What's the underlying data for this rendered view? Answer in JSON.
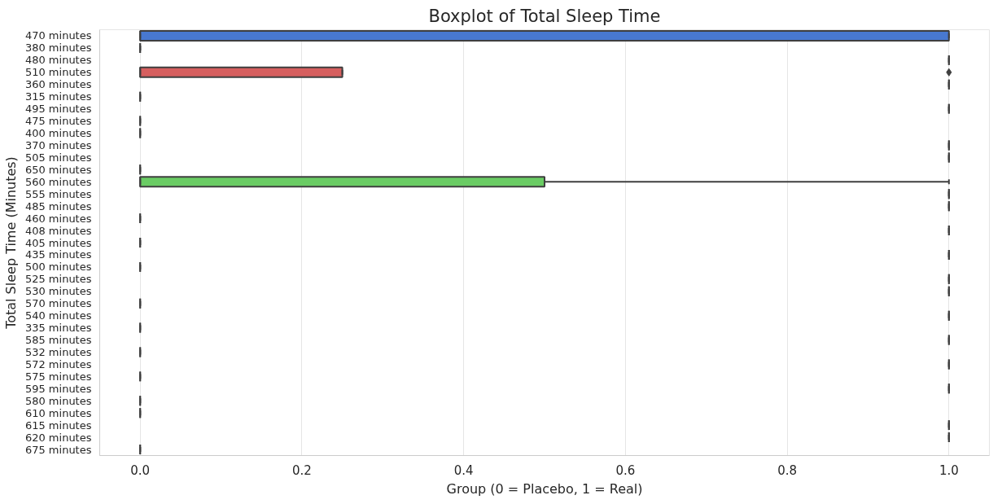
{
  "chart_data": {
    "type": "box",
    "orientation": "horizontal",
    "title": "Boxplot of Total Sleep Time",
    "xlabel": "Group (0 = Placebo, 1 = Real)",
    "ylabel": "Total Sleep Time (Minutes)",
    "categories": [
      "470 minutes",
      "380 minutes",
      "480 minutes",
      "510 minutes",
      "360 minutes",
      "315 minutes",
      "495 minutes",
      "475 minutes",
      "400 minutes",
      "370 minutes",
      "505 minutes",
      "650 minutes",
      "560 minutes",
      "555 minutes",
      "485 minutes",
      "460 minutes",
      "408 minutes",
      "405 minutes",
      "435 minutes",
      "500 minutes",
      "525 minutes",
      "530 minutes",
      "570 minutes",
      "540 minutes",
      "335 minutes",
      "585 minutes",
      "532 minutes",
      "572 minutes",
      "575 minutes",
      "595 minutes",
      "580 minutes",
      "610 minutes",
      "615 minutes",
      "620 minutes",
      "675 minutes"
    ],
    "boxes": [
      {
        "low": 0,
        "q1": 0,
        "median": 0,
        "q3": 1,
        "high": 1
      },
      {
        "low": 0,
        "q1": 0,
        "median": 0,
        "q3": 0,
        "high": 0
      },
      {
        "low": 1,
        "q1": 1,
        "median": 1,
        "q3": 1,
        "high": 1
      },
      {
        "low": 0,
        "q1": 0,
        "median": 0,
        "q3": 0.25,
        "high": 0.25,
        "outliers": [
          1
        ]
      },
      {
        "low": 1,
        "q1": 1,
        "median": 1,
        "q3": 1,
        "high": 1
      },
      {
        "low": 0,
        "q1": 0,
        "median": 0,
        "q3": 0,
        "high": 0
      },
      {
        "low": 1,
        "q1": 1,
        "median": 1,
        "q3": 1,
        "high": 1
      },
      {
        "low": 0,
        "q1": 0,
        "median": 0,
        "q3": 0,
        "high": 0
      },
      {
        "low": 0,
        "q1": 0,
        "median": 0,
        "q3": 0,
        "high": 0
      },
      {
        "low": 1,
        "q1": 1,
        "median": 1,
        "q3": 1,
        "high": 1
      },
      {
        "low": 1,
        "q1": 1,
        "median": 1,
        "q3": 1,
        "high": 1
      },
      {
        "low": 0,
        "q1": 0,
        "median": 0,
        "q3": 0,
        "high": 0
      },
      {
        "low": 0,
        "q1": 0,
        "median": 0,
        "q3": 0.5,
        "high": 1
      },
      {
        "low": 1,
        "q1": 1,
        "median": 1,
        "q3": 1,
        "high": 1
      },
      {
        "low": 1,
        "q1": 1,
        "median": 1,
        "q3": 1,
        "high": 1
      },
      {
        "low": 0,
        "q1": 0,
        "median": 0,
        "q3": 0,
        "high": 0
      },
      {
        "low": 1,
        "q1": 1,
        "median": 1,
        "q3": 1,
        "high": 1
      },
      {
        "low": 0,
        "q1": 0,
        "median": 0,
        "q3": 0,
        "high": 0
      },
      {
        "low": 1,
        "q1": 1,
        "median": 1,
        "q3": 1,
        "high": 1
      },
      {
        "low": 0,
        "q1": 0,
        "median": 0,
        "q3": 0,
        "high": 0
      },
      {
        "low": 1,
        "q1": 1,
        "median": 1,
        "q3": 1,
        "high": 1
      },
      {
        "low": 1,
        "q1": 1,
        "median": 1,
        "q3": 1,
        "high": 1
      },
      {
        "low": 0,
        "q1": 0,
        "median": 0,
        "q3": 0,
        "high": 0
      },
      {
        "low": 1,
        "q1": 1,
        "median": 1,
        "q3": 1,
        "high": 1
      },
      {
        "low": 0,
        "q1": 0,
        "median": 0,
        "q3": 0,
        "high": 0
      },
      {
        "low": 1,
        "q1": 1,
        "median": 1,
        "q3": 1,
        "high": 1
      },
      {
        "low": 0,
        "q1": 0,
        "median": 0,
        "q3": 0,
        "high": 0
      },
      {
        "low": 1,
        "q1": 1,
        "median": 1,
        "q3": 1,
        "high": 1
      },
      {
        "low": 0,
        "q1": 0,
        "median": 0,
        "q3": 0,
        "high": 0
      },
      {
        "low": 1,
        "q1": 1,
        "median": 1,
        "q3": 1,
        "high": 1
      },
      {
        "low": 0,
        "q1": 0,
        "median": 0,
        "q3": 0,
        "high": 0
      },
      {
        "low": 0,
        "q1": 0,
        "median": 0,
        "q3": 0,
        "high": 0
      },
      {
        "low": 1,
        "q1": 1,
        "median": 1,
        "q3": 1,
        "high": 1
      },
      {
        "low": 1,
        "q1": 1,
        "median": 1,
        "q3": 1,
        "high": 1
      },
      {
        "low": 0,
        "q1": 0,
        "median": 0,
        "q3": 0,
        "high": 0
      }
    ],
    "colors": [
      "#4878d0",
      null,
      null,
      "#d65f5f",
      null,
      null,
      null,
      null,
      null,
      null,
      null,
      null,
      "#6acc64",
      null,
      null,
      null,
      null,
      null,
      null,
      null,
      null,
      null,
      null,
      null,
      null,
      null,
      null,
      null,
      null,
      null,
      null,
      null,
      null,
      null,
      null
    ],
    "marker": "diamond",
    "xlim": [
      -0.05,
      1.05
    ],
    "xticks": [
      {
        "value": 0,
        "label": "0.0"
      },
      {
        "value": 0.2,
        "label": "0.2"
      },
      {
        "value": 0.4,
        "label": "0.4"
      },
      {
        "value": 0.6,
        "label": "0.6"
      },
      {
        "value": 0.8,
        "label": "0.8"
      },
      {
        "value": 1,
        "label": "1.0"
      }
    ],
    "grid": "x"
  }
}
